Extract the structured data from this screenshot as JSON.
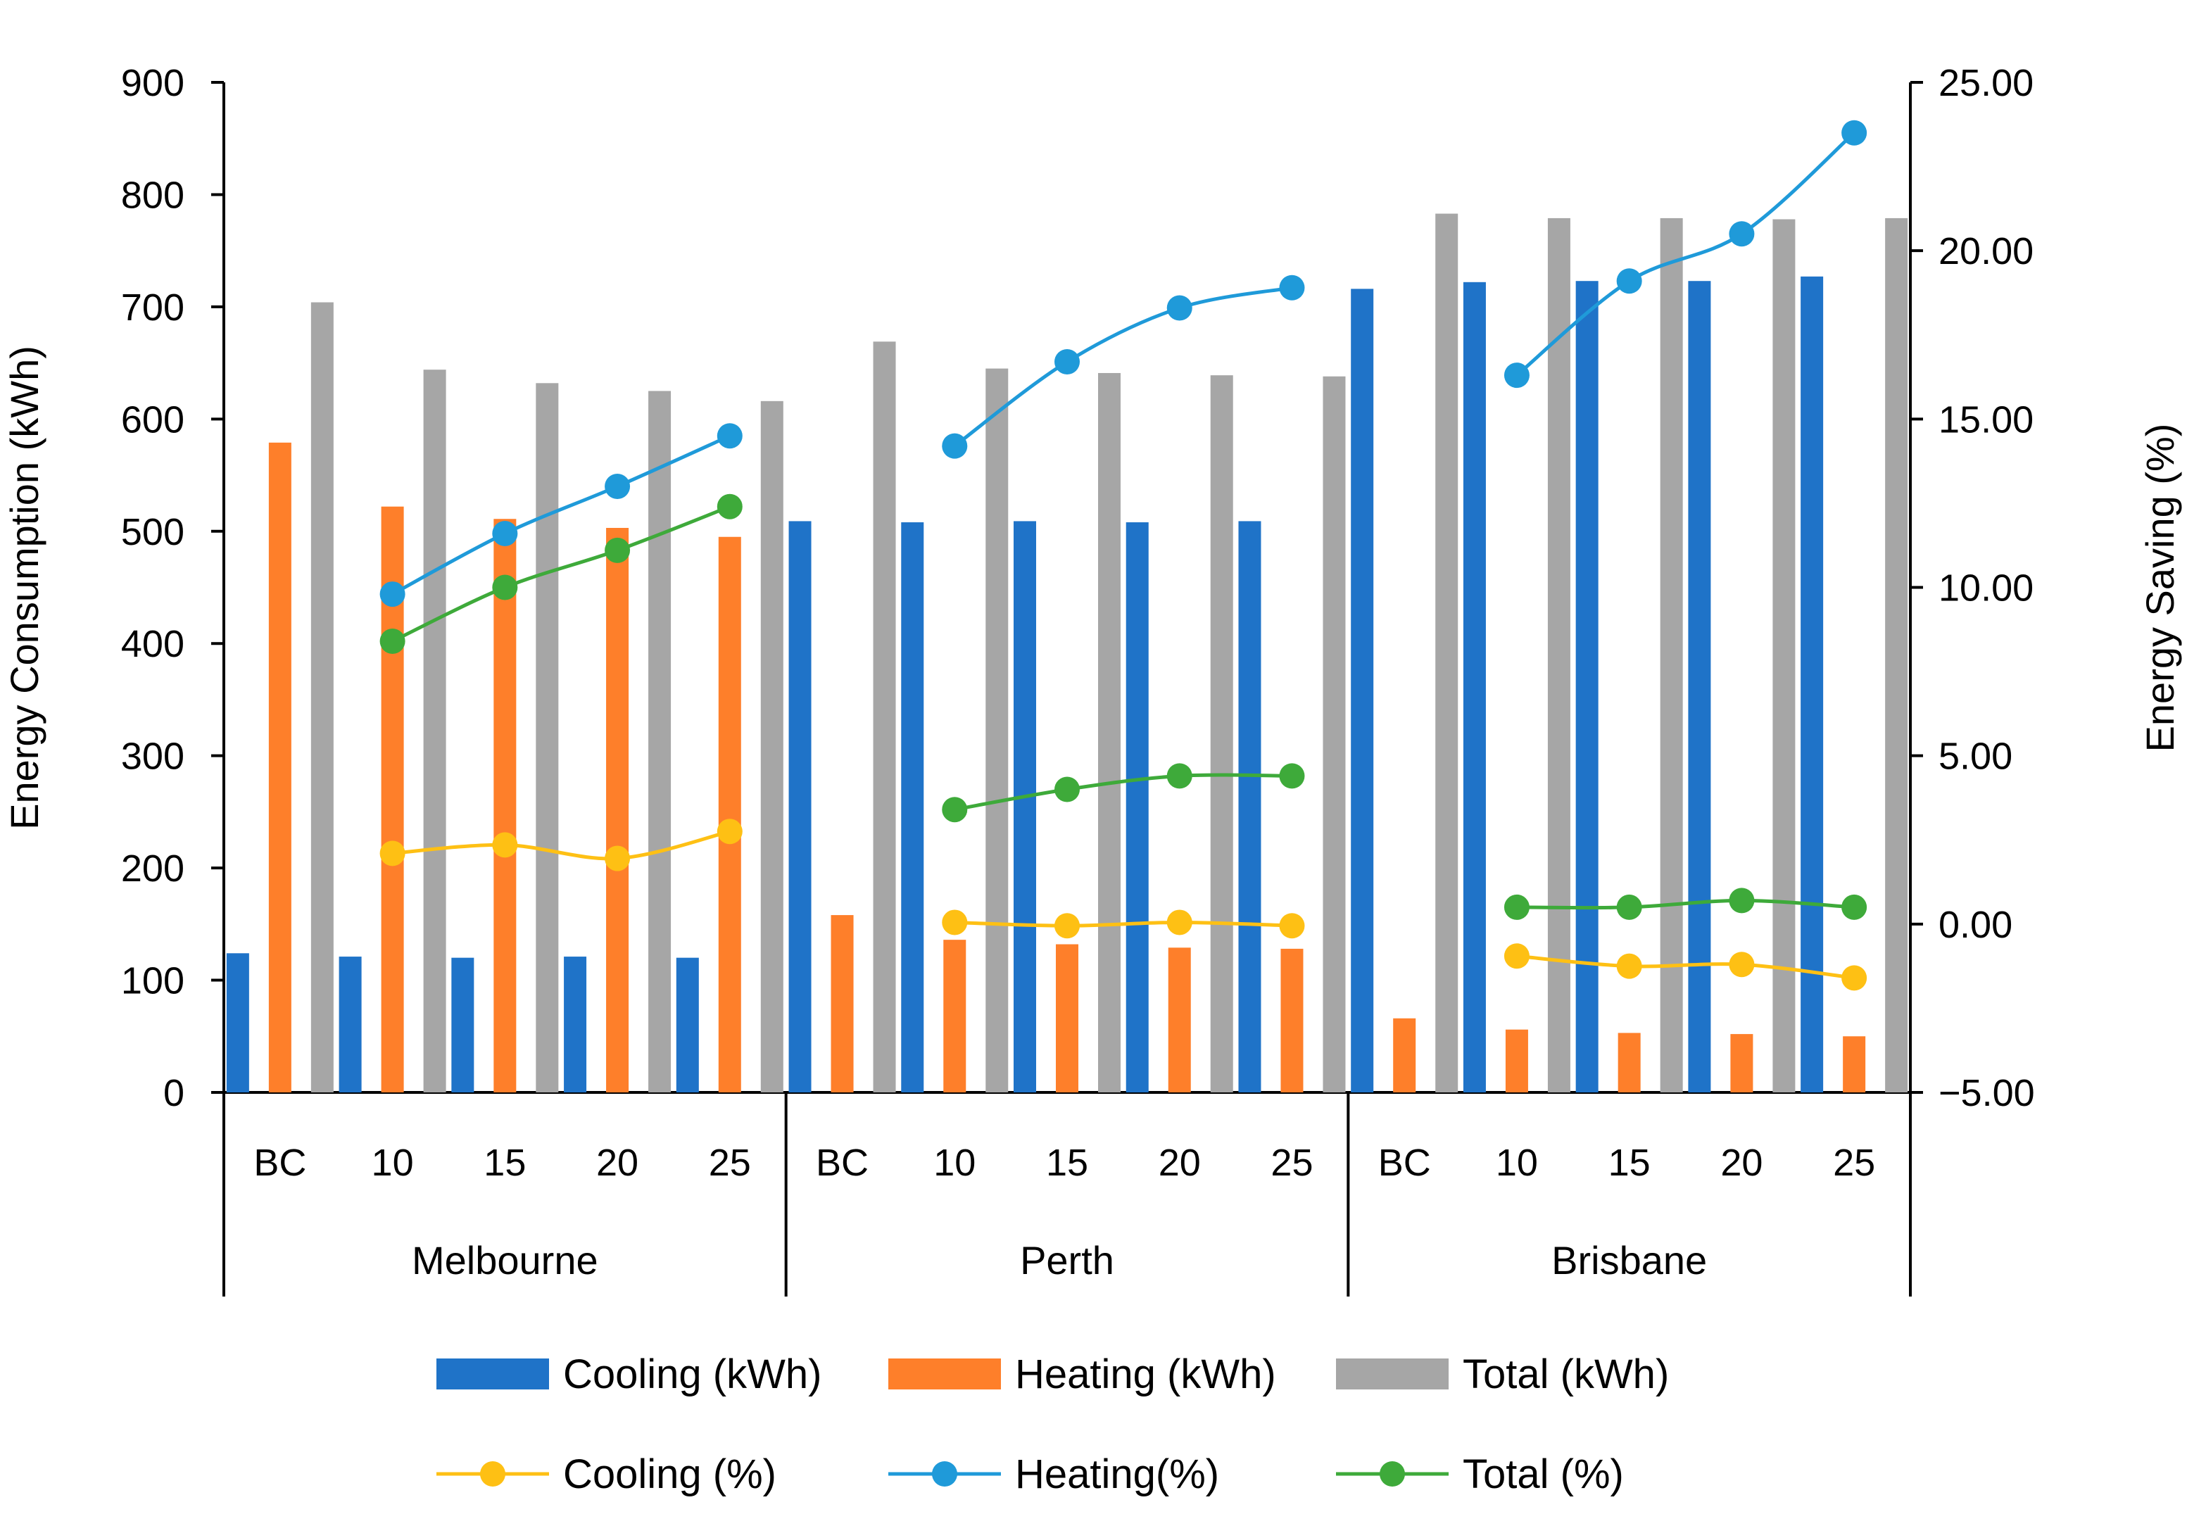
{
  "chart_data": {
    "type": "bar",
    "title": "",
    "groups": [
      {
        "name": "Melbourne",
        "categories": [
          "BC",
          "10",
          "15",
          "20",
          "25"
        ]
      },
      {
        "name": "Perth",
        "categories": [
          "BC",
          "10",
          "15",
          "20",
          "25"
        ]
      },
      {
        "name": "Brisbane",
        "categories": [
          "BC",
          "10",
          "15",
          "20",
          "25"
        ]
      }
    ],
    "ylabel": "Energy Consumption (kWh)",
    "y2label": "Energy Saving (%)",
    "ylim": [
      0,
      900
    ],
    "yticks": [
      0,
      100,
      200,
      300,
      400,
      500,
      600,
      700,
      800,
      900
    ],
    "ytick_labels": [
      "0",
      "100",
      "200",
      "300",
      "400",
      "500",
      "600",
      "700",
      "800",
      "900"
    ],
    "y2lim": [
      -5,
      25
    ],
    "y2ticks": [
      -5,
      0,
      5,
      10,
      15,
      20,
      25
    ],
    "y2tick_labels": [
      "−5.00",
      "0.00",
      "5.00",
      "10.00",
      "15.00",
      "20.00",
      "25.00"
    ],
    "bar_series": [
      {
        "name": "Cooling (kWh)",
        "color": "#1f73c8",
        "values": [
          124,
          121,
          120,
          121,
          120,
          509,
          508,
          509,
          508,
          509,
          716,
          722,
          723,
          723,
          727
        ]
      },
      {
        "name": "Heating (kWh)",
        "color": "#fe7f2a",
        "values": [
          579,
          522,
          511,
          503,
          495,
          158,
          136,
          132,
          129,
          128,
          66,
          56,
          53,
          52,
          50
        ]
      },
      {
        "name": "Total (kWh)",
        "color": "#a6a6a6",
        "values": [
          704,
          644,
          632,
          625,
          616,
          669,
          645,
          641,
          639,
          638,
          783,
          779,
          779,
          778,
          779
        ]
      }
    ],
    "line_series": [
      {
        "name": "Cooling (%)",
        "color": "#fec014",
        "values": [
          null,
          2.1,
          2.35,
          1.95,
          2.75,
          null,
          0.05,
          -0.05,
          0.05,
          -0.05,
          null,
          -0.95,
          -1.25,
          -1.2,
          -1.6
        ]
      },
      {
        "name": "Heating(%)",
        "color": "#1f9ad9",
        "values": [
          null,
          9.8,
          11.6,
          13.0,
          14.5,
          null,
          14.2,
          16.7,
          18.3,
          18.9,
          null,
          16.3,
          19.1,
          20.5,
          23.5
        ]
      },
      {
        "name": "Total (%)",
        "color": "#3eaa3a",
        "values": [
          null,
          8.4,
          10.0,
          11.1,
          12.4,
          null,
          3.4,
          4.0,
          4.4,
          4.4,
          null,
          0.5,
          0.5,
          0.7,
          0.5
        ]
      }
    ],
    "legend_position": "bottom"
  }
}
